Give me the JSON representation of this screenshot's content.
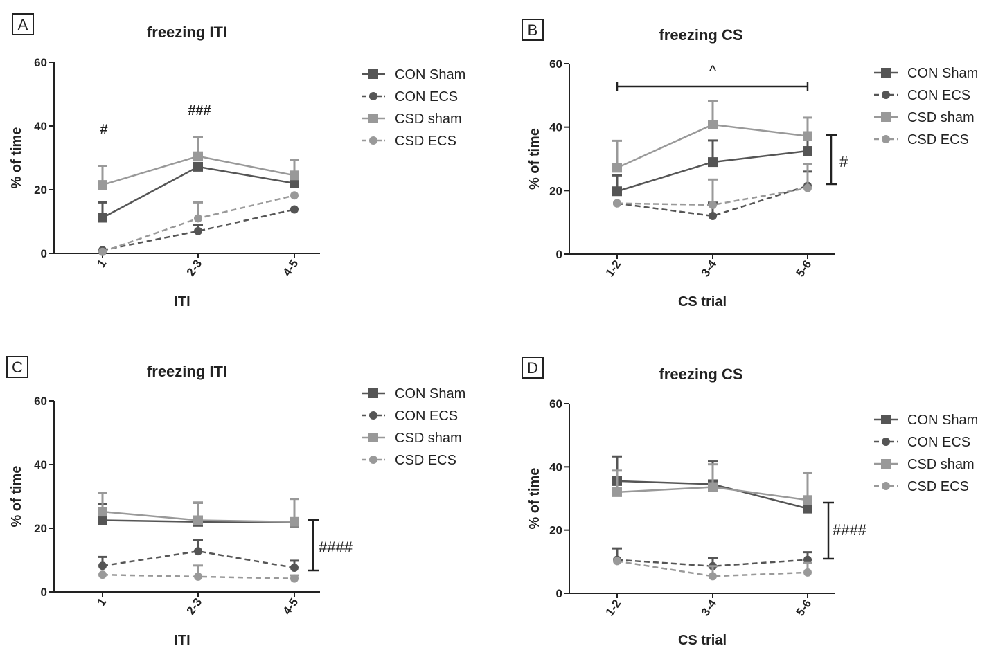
{
  "chart_data": [
    {
      "panel": "A",
      "type": "line",
      "title": "freezing ITI",
      "xlabel": "ITI",
      "ylabel": "% of time",
      "categories": [
        "1",
        "2-3",
        "4-5"
      ],
      "ylim": [
        0,
        60
      ],
      "yticks": [
        "0",
        "20",
        "40",
        "60"
      ],
      "series": [
        {
          "name": "CON Sham",
          "marker": "square",
          "dash": false,
          "color": "#555555",
          "values": [
            11.2,
            27.2,
            22.0
          ],
          "err": [
            4.8,
            0,
            0
          ]
        },
        {
          "name": "CON ECS",
          "marker": "circle",
          "dash": true,
          "color": "#555555",
          "values": [
            1.0,
            7.0,
            13.8
          ],
          "err": [
            0,
            2.0,
            0
          ]
        },
        {
          "name": "CSD sham",
          "marker": "square",
          "dash": false,
          "color": "#999999",
          "values": [
            21.5,
            30.5,
            24.5
          ],
          "err": [
            6.0,
            6.0,
            4.8
          ]
        },
        {
          "name": "CSD ECS",
          "marker": "circle",
          "dash": true,
          "color": "#999999",
          "values": [
            0.5,
            11.0,
            18.2
          ],
          "err": [
            0,
            5.0,
            0
          ]
        }
      ],
      "annotations": [
        {
          "text": "#",
          "at": "1",
          "y": 39
        },
        {
          "text": "###",
          "at": "2-3",
          "y": 45
        }
      ]
    },
    {
      "panel": "B",
      "type": "line",
      "title": "freezing CS",
      "xlabel": "CS trial",
      "ylabel": "% of time",
      "categories": [
        "1-2",
        "3-4",
        "5-6"
      ],
      "ylim": [
        0,
        60
      ],
      "yticks": [
        "0",
        "20",
        "40",
        "60"
      ],
      "series": [
        {
          "name": "CON Sham",
          "marker": "square",
          "dash": false,
          "color": "#555555",
          "values": [
            19.8,
            29.0,
            32.5
          ],
          "err": [
            5.0,
            6.8,
            5.5
          ]
        },
        {
          "name": "CON ECS",
          "marker": "circle",
          "dash": true,
          "color": "#555555",
          "values": [
            16.0,
            12.0,
            21.5
          ],
          "err": [
            0,
            4.2,
            4.5
          ]
        },
        {
          "name": "CSD sham",
          "marker": "square",
          "dash": false,
          "color": "#999999",
          "values": [
            27.2,
            40.8,
            37.2
          ],
          "err": [
            8.5,
            7.5,
            5.8
          ]
        },
        {
          "name": "CSD ECS",
          "marker": "circle",
          "dash": true,
          "color": "#999999",
          "values": [
            16.0,
            15.5,
            20.8
          ],
          "err": [
            0,
            8.0,
            7.5
          ]
        }
      ],
      "annotations": [
        {
          "text": "^",
          "type": "horizontal-bracket"
        },
        {
          "text": "#",
          "type": "vertical-bracket"
        }
      ]
    },
    {
      "panel": "C",
      "type": "line",
      "title": "freezing ITI",
      "xlabel": "ITI",
      "ylabel": "% of time",
      "categories": [
        "1",
        "2-3",
        "4-5"
      ],
      "ylim": [
        0,
        60
      ],
      "yticks": [
        "0",
        "20",
        "40",
        "60"
      ],
      "series": [
        {
          "name": "CON Sham",
          "marker": "square",
          "dash": false,
          "color": "#555555",
          "values": [
            22.5,
            22.0,
            21.8
          ],
          "err": [
            5.0,
            6.0,
            0
          ]
        },
        {
          "name": "CON ECS",
          "marker": "circle",
          "dash": true,
          "color": "#555555",
          "values": [
            8.2,
            12.8,
            7.6
          ],
          "err": [
            2.8,
            3.5,
            2.2
          ]
        },
        {
          "name": "CSD sham",
          "marker": "square",
          "dash": false,
          "color": "#999999",
          "values": [
            25.2,
            22.5,
            22.0
          ],
          "err": [
            5.8,
            5.6,
            7.2
          ]
        },
        {
          "name": "CSD ECS",
          "marker": "circle",
          "dash": true,
          "color": "#999999",
          "values": [
            5.4,
            4.8,
            4.2
          ],
          "err": [
            0,
            3.5,
            1.0
          ]
        }
      ],
      "annotations": [
        {
          "text": "####",
          "type": "vertical-bracket"
        }
      ]
    },
    {
      "panel": "D",
      "type": "line",
      "title": "freezing CS",
      "xlabel": "CS trial",
      "ylabel": "% of time",
      "categories": [
        "1-2",
        "3-4",
        "5-6"
      ],
      "ylim": [
        0,
        60
      ],
      "yticks": [
        "0",
        "20",
        "40",
        "60"
      ],
      "series": [
        {
          "name": "CON Sham",
          "marker": "square",
          "dash": false,
          "color": "#555555",
          "values": [
            35.5,
            34.5,
            26.8
          ],
          "err": [
            7.8,
            7.2,
            0
          ]
        },
        {
          "name": "CON ECS",
          "marker": "circle",
          "dash": true,
          "color": "#555555",
          "values": [
            10.6,
            8.6,
            10.6
          ],
          "err": [
            3.6,
            2.6,
            2.4
          ]
        },
        {
          "name": "CSD sham",
          "marker": "square",
          "dash": false,
          "color": "#999999",
          "values": [
            32.0,
            33.6,
            29.5
          ],
          "err": [
            6.8,
            7.2,
            8.5
          ]
        },
        {
          "name": "CSD ECS",
          "marker": "circle",
          "dash": true,
          "color": "#999999",
          "values": [
            10.2,
            5.4,
            6.6
          ],
          "err": [
            0,
            3.2,
            3.0
          ]
        }
      ],
      "annotations": [
        {
          "text": "####",
          "type": "vertical-bracket"
        }
      ]
    }
  ]
}
